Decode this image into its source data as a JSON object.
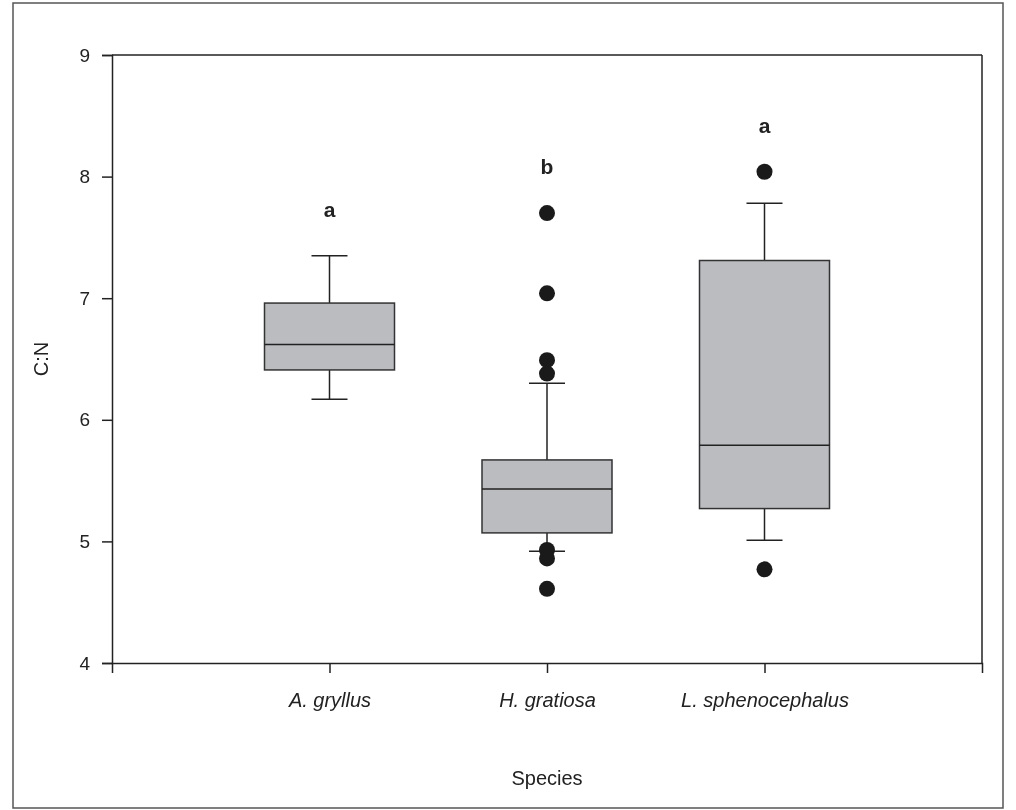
{
  "chart_data": {
    "type": "box",
    "xlabel": "Species",
    "ylabel": "C:N",
    "categories": [
      "A. gryllus",
      "H. gratiosa",
      "L. sphenocephalus"
    ],
    "color": "#bbbcc0",
    "boxes": [
      {
        "low": 6.17,
        "q1": 6.41,
        "median": 6.62,
        "q3": 6.96,
        "high": 7.35
      },
      {
        "low": 4.92,
        "q1": 5.07,
        "median": 5.43,
        "q3": 5.67,
        "high": 6.3,
        "outliers": [
          7.7,
          7.04,
          6.49,
          6.38,
          4.93,
          4.86,
          4.61
        ]
      },
      {
        "low": 5.01,
        "q1": 5.27,
        "median": 5.79,
        "q3": 7.31,
        "high": 7.78,
        "outliers": [
          8.04,
          4.77
        ]
      }
    ],
    "ylim": [
      4,
      9
    ],
    "yticks": [
      4,
      5,
      6,
      7,
      8,
      9
    ],
    "annotations": [
      "a",
      "b",
      "a"
    ]
  }
}
